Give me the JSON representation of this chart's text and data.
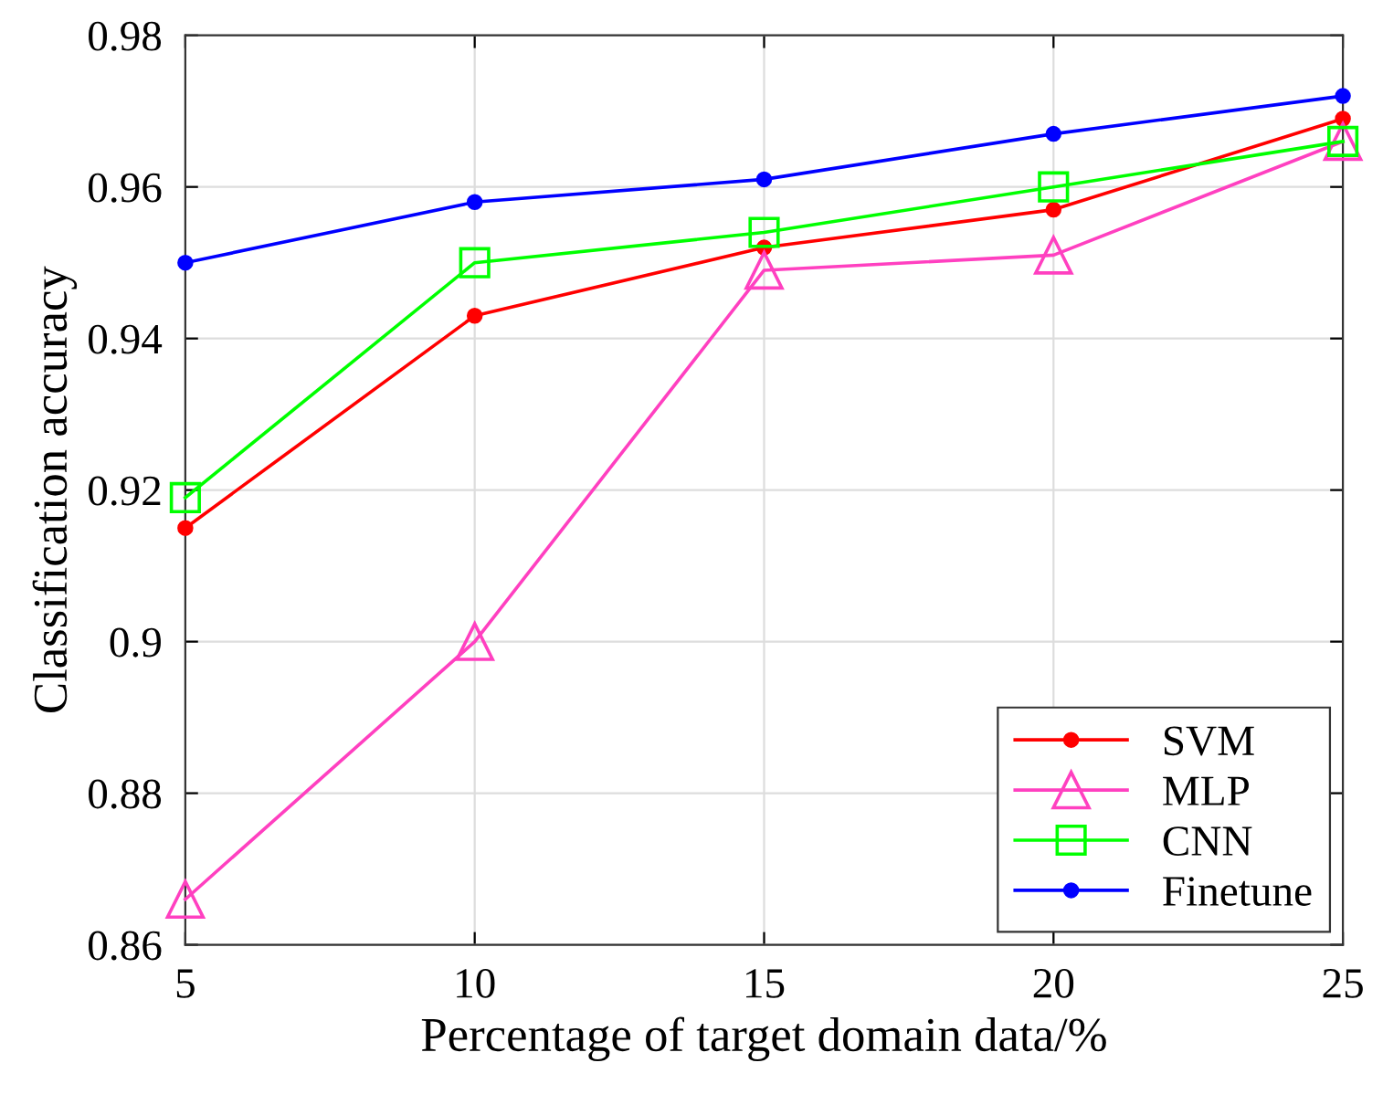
{
  "chart_data": {
    "type": "line",
    "xlabel": "Percentage of target domain data/%",
    "ylabel": "Classification accuracy",
    "x": [
      5,
      10,
      15,
      20,
      25
    ],
    "series": [
      {
        "name": "SVM",
        "color": "#ff0000",
        "marker": "circle",
        "values": [
          0.915,
          0.943,
          0.952,
          0.957,
          0.969
        ]
      },
      {
        "name": "MLP",
        "color": "#ff40c0",
        "marker": "triangle",
        "values": [
          0.866,
          0.9,
          0.949,
          0.951,
          0.966
        ]
      },
      {
        "name": "CNN",
        "color": "#00ff00",
        "marker": "square",
        "values": [
          0.919,
          0.95,
          0.954,
          0.96,
          0.966
        ]
      },
      {
        "name": "Finetune",
        "color": "#0000ff",
        "marker": "circle",
        "values": [
          0.95,
          0.958,
          0.961,
          0.967,
          0.972
        ]
      }
    ],
    "xlim": [
      5,
      25
    ],
    "xticks": [
      5,
      10,
      15,
      20,
      25
    ],
    "ylim": [
      0.86,
      0.98
    ],
    "yticks": [
      {
        "value": 0.86,
        "label": "0.86"
      },
      {
        "value": 0.88,
        "label": "0.88"
      },
      {
        "value": 0.9,
        "label": "0.9"
      },
      {
        "value": 0.92,
        "label": "0.92"
      },
      {
        "value": 0.94,
        "label": "0.94"
      },
      {
        "value": 0.96,
        "label": "0.96"
      },
      {
        "value": 0.98,
        "label": "0.98"
      }
    ],
    "grid": true,
    "legend": "bottom right",
    "line_style": "solid"
  }
}
